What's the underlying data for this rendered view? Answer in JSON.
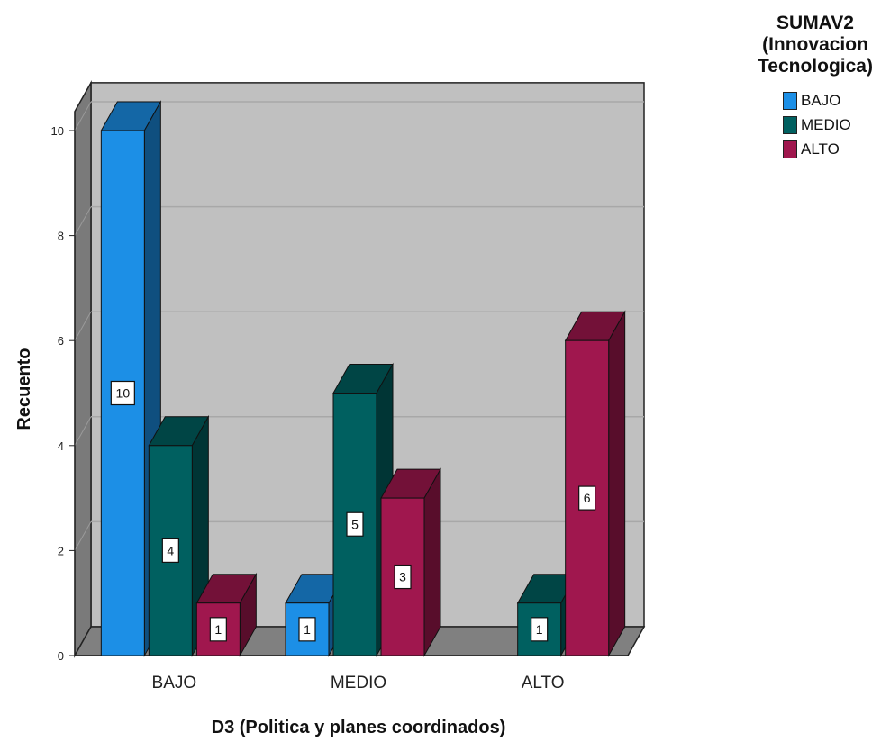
{
  "chart_data": {
    "type": "bar",
    "xlabel": "D3 (Politica y planes coordinados)",
    "ylabel": "Recuento",
    "categories": [
      "BAJO",
      "MEDIO",
      "ALTO"
    ],
    "ylim": [
      0,
      10.5
    ],
    "yticks": [
      0,
      2,
      4,
      6,
      8,
      10
    ],
    "grid": true,
    "legend_position": "top-right",
    "legend_title": "SUMAV2 (Innovacion Tecnologica)",
    "series": [
      {
        "name": "BAJO",
        "color": "#1c8fe6",
        "values": [
          10,
          1,
          null
        ]
      },
      {
        "name": "MEDIO",
        "color": "#006060",
        "values": [
          4,
          5,
          1
        ]
      },
      {
        "name": "ALTO",
        "color": "#a0174e",
        "values": [
          1,
          3,
          6
        ]
      }
    ]
  }
}
